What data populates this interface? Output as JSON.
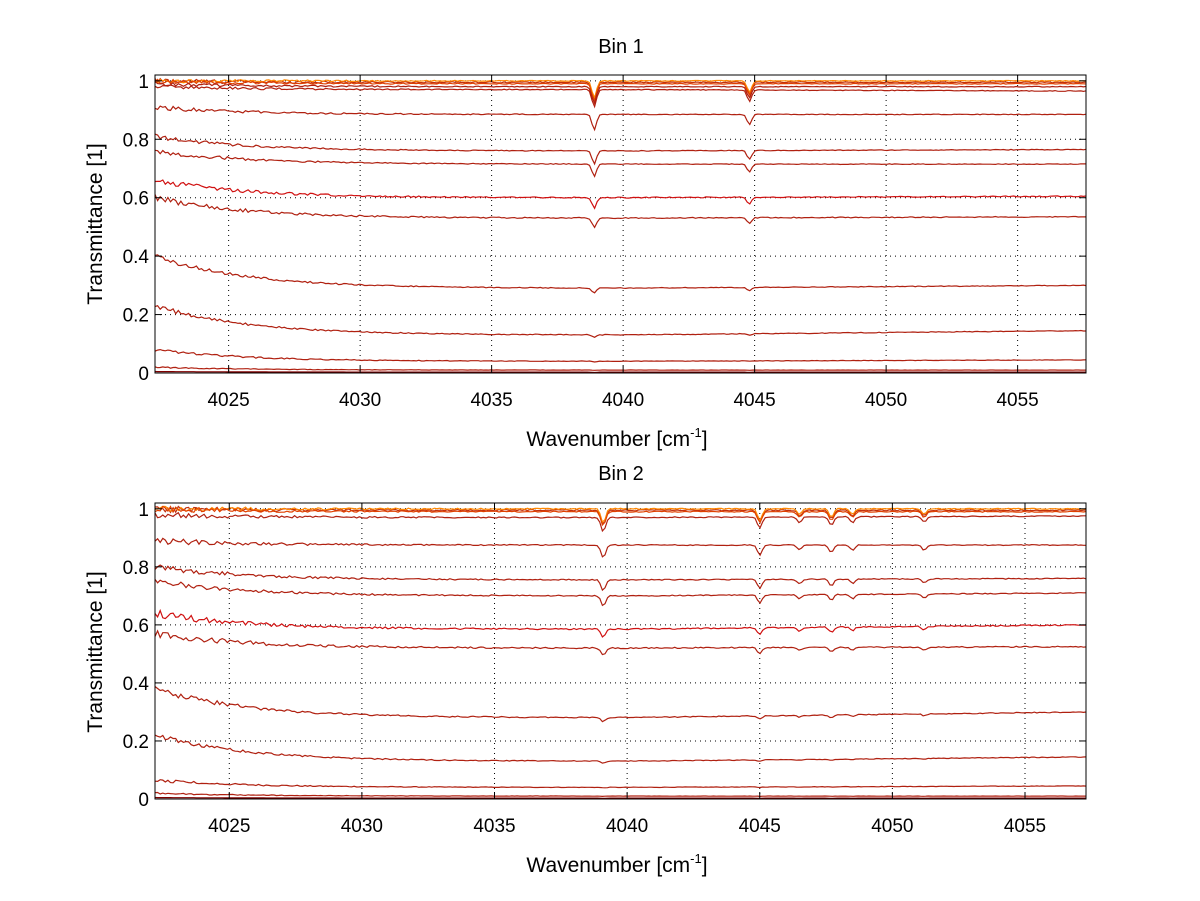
{
  "figure": {
    "background": "#ffffff"
  },
  "chart_data": [
    {
      "type": "line",
      "title": "Bin 1",
      "xlabel_main": "Wavenumber [cm",
      "xlabel_sup": "-1",
      "xlabel_end": "]",
      "ylabel": "Transmittance [1]",
      "xlim": [
        4022.2,
        4057.6
      ],
      "ylim": [
        0,
        1.02
      ],
      "xticks": [
        4025,
        4030,
        4035,
        4040,
        4045,
        4050,
        4055
      ],
      "xtick_labels": [
        "4025",
        "4030",
        "4035",
        "4040",
        "4045",
        "4050",
        "4055"
      ],
      "yticks": [
        0,
        0.2,
        0.4,
        0.6,
        0.8,
        1
      ],
      "ytick_labels": [
        "0",
        "0.2",
        "0.4",
        "0.6",
        "0.8",
        "1"
      ],
      "grid": true,
      "dips": [
        {
          "x": 4038.9,
          "depth": 0.06
        },
        {
          "x": 4044.8,
          "depth": 0.04
        }
      ],
      "series": [
        {
          "color": "#c03010",
          "start": 1.0,
          "mid": 0.995,
          "end": 0.995,
          "noise": 0.004
        },
        {
          "color": "#ff8800",
          "start": 1.0,
          "mid": 1.0,
          "end": 1.0,
          "noise": 0.003
        },
        {
          "color": "#e04000",
          "start": 1.0,
          "mid": 0.99,
          "end": 0.99,
          "noise": 0.003
        },
        {
          "color": "#b02010",
          "start": 0.99,
          "mid": 0.98,
          "end": 0.98,
          "noise": 0.003
        },
        {
          "color": "#b02010",
          "start": 0.98,
          "mid": 0.97,
          "end": 0.965,
          "noise": 0.003
        },
        {
          "color": "#b02010",
          "start": 0.91,
          "mid": 0.885,
          "end": 0.885,
          "noise": 0.003
        },
        {
          "color": "#b02010",
          "start": 0.81,
          "mid": 0.76,
          "end": 0.765,
          "noise": 0.003
        },
        {
          "color": "#b02010",
          "start": 0.76,
          "mid": 0.715,
          "end": 0.715,
          "noise": 0.003
        },
        {
          "color": "#d01010",
          "start": 0.66,
          "mid": 0.6,
          "end": 0.605,
          "noise": 0.004
        },
        {
          "color": "#b02010",
          "start": 0.6,
          "mid": 0.53,
          "end": 0.535,
          "noise": 0.004
        },
        {
          "color": "#b02010",
          "start": 0.4,
          "mid": 0.29,
          "end": 0.3,
          "noise": 0.003
        },
        {
          "color": "#b02010",
          "start": 0.23,
          "mid": 0.13,
          "end": 0.145,
          "noise": 0.003
        },
        {
          "color": "#b02010",
          "start": 0.08,
          "mid": 0.04,
          "end": 0.045,
          "noise": 0.002
        },
        {
          "color": "#b02010",
          "start": 0.02,
          "mid": 0.01,
          "end": 0.01,
          "noise": 0.001
        },
        {
          "color": "#800000",
          "start": 0.005,
          "mid": 0.003,
          "end": 0.003,
          "noise": 0.0
        }
      ]
    },
    {
      "type": "line",
      "title": "Bin 2",
      "xlabel_main": "Wavenumber [cm",
      "xlabel_sup": "-1",
      "xlabel_end": "]",
      "ylabel": "Transmittance [1]",
      "xlim": [
        4022.2,
        4057.3
      ],
      "ylim": [
        0,
        1.02
      ],
      "xticks": [
        4025,
        4030,
        4035,
        4040,
        4045,
        4050,
        4055
      ],
      "xtick_labels": [
        "4025",
        "4030",
        "4035",
        "4040",
        "4045",
        "4050",
        "4055"
      ],
      "yticks": [
        0,
        0.2,
        0.4,
        0.6,
        0.8,
        1
      ],
      "ytick_labels": [
        "0",
        "0.2",
        "0.4",
        "0.6",
        "0.8",
        "1"
      ],
      "grid": true,
      "dips": [
        {
          "x": 4039.1,
          "depth": 0.05
        },
        {
          "x": 4045.0,
          "depth": 0.04
        },
        {
          "x": 4046.5,
          "depth": 0.02
        },
        {
          "x": 4047.7,
          "depth": 0.03
        },
        {
          "x": 4048.5,
          "depth": 0.02
        },
        {
          "x": 4051.2,
          "depth": 0.02
        }
      ],
      "series": [
        {
          "color": "#c03010",
          "start": 1.0,
          "mid": 0.995,
          "end": 0.995,
          "noise": 0.005
        },
        {
          "color": "#ff8800",
          "start": 1.0,
          "mid": 1.0,
          "end": 1.0,
          "noise": 0.004
        },
        {
          "color": "#e04000",
          "start": 1.0,
          "mid": 0.99,
          "end": 0.99,
          "noise": 0.004
        },
        {
          "color": "#b02010",
          "start": 0.98,
          "mid": 0.97,
          "end": 0.975,
          "noise": 0.004
        },
        {
          "color": "#b02010",
          "start": 0.89,
          "mid": 0.875,
          "end": 0.875,
          "noise": 0.004
        },
        {
          "color": "#b02010",
          "start": 0.8,
          "mid": 0.755,
          "end": 0.76,
          "noise": 0.004
        },
        {
          "color": "#b02010",
          "start": 0.75,
          "mid": 0.7,
          "end": 0.71,
          "noise": 0.004
        },
        {
          "color": "#d01010",
          "start": 0.64,
          "mid": 0.585,
          "end": 0.6,
          "noise": 0.005
        },
        {
          "color": "#b02010",
          "start": 0.57,
          "mid": 0.52,
          "end": 0.525,
          "noise": 0.005
        },
        {
          "color": "#b02010",
          "start": 0.38,
          "mid": 0.28,
          "end": 0.3,
          "noise": 0.004
        },
        {
          "color": "#b02010",
          "start": 0.22,
          "mid": 0.13,
          "end": 0.145,
          "noise": 0.003
        },
        {
          "color": "#b02010",
          "start": 0.065,
          "mid": 0.04,
          "end": 0.045,
          "noise": 0.002
        },
        {
          "color": "#b02010",
          "start": 0.02,
          "mid": 0.01,
          "end": 0.01,
          "noise": 0.001
        },
        {
          "color": "#800000",
          "start": 0.005,
          "mid": 0.003,
          "end": 0.003,
          "noise": 0.0
        }
      ]
    }
  ]
}
